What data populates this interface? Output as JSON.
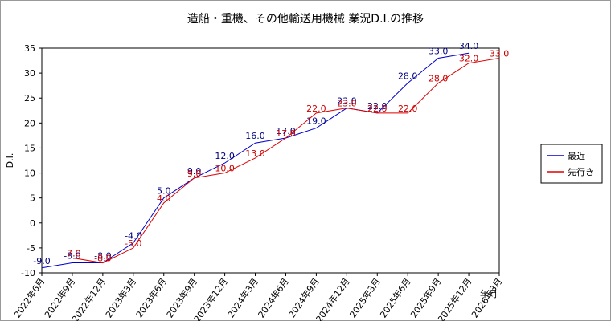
{
  "chart_data": {
    "type": "line",
    "title": "造船・重機、その他輸送用機械 業況D.I.の推移",
    "y_label": "D.I.",
    "x_label": "年月",
    "categories": [
      "2022年6月",
      "2022年9月",
      "2022年12月",
      "2023年3月",
      "2023年6月",
      "2023年9月",
      "2023年12月",
      "2024年3月",
      "2024年6月",
      "2024年9月",
      "2024年12月",
      "2025年3月",
      "2025年6月",
      "2025年9月",
      "2025年12月",
      "2026年3月"
    ],
    "series": [
      {
        "name": "最近",
        "color": "#0000cc",
        "label_color": "#000080",
        "values": [
          -9,
          -8,
          -8,
          -4,
          5,
          9,
          12,
          16,
          17,
          19,
          23,
          22,
          28,
          33,
          34,
          null
        ],
        "value_labels": [
          "-9.0",
          "-8.0",
          "-8.0",
          "-4.0",
          "5.0",
          "9.0",
          "12.0",
          "16.0",
          "17.0",
          "19.0",
          "23.0",
          "22.0",
          "28.0",
          "33.0",
          "34.0",
          null
        ]
      },
      {
        "name": "先行き",
        "color": "#dd0000",
        "label_color": "#cc0000",
        "values": [
          null,
          -7,
          -8,
          -5,
          4,
          9,
          10,
          13,
          17,
          22,
          23,
          22,
          22,
          28,
          32,
          33
        ],
        "value_labels": [
          null,
          "-7.0",
          "-8.0",
          "-5.0",
          "4.0",
          "9.0",
          "10.0",
          "13.0",
          "17.0",
          "22.0",
          "23.0",
          "22.0",
          "22.0",
          "28.0",
          "32.0",
          "33.0"
        ]
      }
    ],
    "ylim": [
      -10,
      35
    ],
    "yticks": [
      -10,
      -5,
      0,
      5,
      10,
      15,
      20,
      25,
      30,
      35
    ],
    "grid": false,
    "legend": "right"
  }
}
